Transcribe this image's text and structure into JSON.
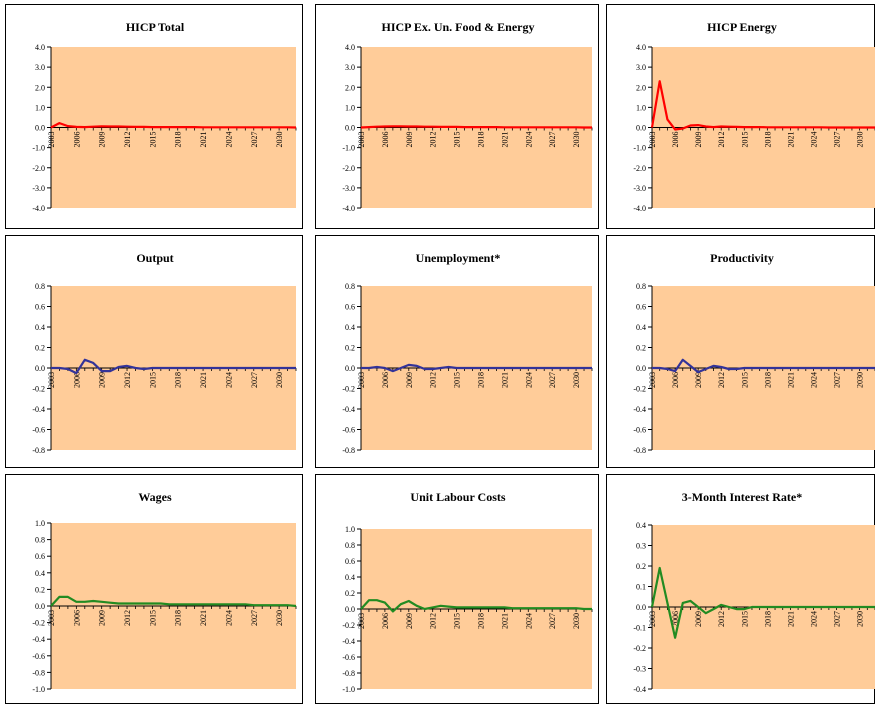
{
  "chart_data": [
    {
      "type": "line",
      "title": "HICP Total",
      "color": "#ff0000",
      "ylim": [
        -4,
        4
      ],
      "yticks": [
        4,
        3,
        2,
        1,
        0,
        -1,
        -2,
        -3,
        -4
      ],
      "xlim": [
        2003,
        2032
      ],
      "xticks": [
        "2003",
        "2006",
        "2009",
        "2012",
        "2015",
        "2018",
        "2021",
        "2024",
        "2027",
        "2030"
      ],
      "series": [
        {
          "x": [
            2003,
            2004,
            2005,
            2006,
            2007,
            2008,
            2009,
            2010,
            2011,
            2012,
            2013,
            2014,
            2015,
            2016,
            2017,
            2018,
            2019,
            2020,
            2021,
            2022,
            2023,
            2024,
            2025,
            2026,
            2027,
            2028,
            2029,
            2030,
            2031,
            2032
          ],
          "values": [
            0.0,
            0.22,
            0.07,
            0.03,
            0.02,
            0.04,
            0.06,
            0.05,
            0.05,
            0.04,
            0.03,
            0.03,
            0.02,
            0.02,
            0.02,
            0.02,
            0.02,
            0.02,
            0.01,
            0.01,
            0.01,
            0.01,
            0.01,
            0.01,
            0.01,
            0.01,
            0.01,
            0.01,
            0.01,
            0.0
          ]
        }
      ]
    },
    {
      "type": "line",
      "title": "HICP Ex. Un. Food & Energy",
      "color": "#ff0000",
      "ylim": [
        -4,
        4
      ],
      "yticks": [
        4,
        3,
        2,
        1,
        0,
        -1,
        -2,
        -3,
        -4
      ],
      "xlim": [
        2003,
        2032
      ],
      "xticks": [
        "2003",
        "2006",
        "2009",
        "2012",
        "2015",
        "2018",
        "2021",
        "2024",
        "2027",
        "2030"
      ],
      "series": [
        {
          "x": [
            2003,
            2004,
            2005,
            2006,
            2007,
            2008,
            2009,
            2010,
            2011,
            2012,
            2013,
            2014,
            2015,
            2016,
            2017,
            2018,
            2019,
            2020,
            2021,
            2022,
            2023,
            2024,
            2025,
            2026,
            2027,
            2028,
            2029,
            2030,
            2031,
            2032
          ],
          "values": [
            0.0,
            0.02,
            0.04,
            0.05,
            0.06,
            0.06,
            0.05,
            0.05,
            0.04,
            0.04,
            0.03,
            0.03,
            0.03,
            0.02,
            0.02,
            0.02,
            0.02,
            0.02,
            0.01,
            0.01,
            0.01,
            0.01,
            0.01,
            0.01,
            0.01,
            0.01,
            0.01,
            0.01,
            0.0,
            0.0
          ]
        }
      ]
    },
    {
      "type": "line",
      "title": "HICP Energy",
      "color": "#ff0000",
      "ylim": [
        -4,
        4
      ],
      "yticks": [
        4,
        3,
        2,
        1,
        0,
        -1,
        -2,
        -3,
        -4
      ],
      "xlim": [
        2003,
        2032
      ],
      "xticks": [
        "2003",
        "2006",
        "2009",
        "2012",
        "2015",
        "2018",
        "2021",
        "2024",
        "2027",
        "2030"
      ],
      "series": [
        {
          "x": [
            2003,
            2004,
            2005,
            2006,
            2007,
            2008,
            2009,
            2010,
            2011,
            2012,
            2013,
            2014,
            2015,
            2016,
            2017,
            2018,
            2019,
            2020,
            2021,
            2022,
            2023,
            2024,
            2025,
            2026,
            2027,
            2028,
            2029,
            2030,
            2031,
            2032
          ],
          "values": [
            0.0,
            2.3,
            0.4,
            -0.1,
            -0.05,
            0.1,
            0.12,
            0.05,
            0.02,
            0.05,
            0.04,
            0.03,
            0.02,
            0.02,
            0.02,
            0.01,
            0.01,
            0.01,
            0.01,
            0.01,
            0.01,
            0.01,
            0.01,
            0.0,
            0.0,
            0.0,
            0.0,
            0.0,
            0.0,
            0.0
          ]
        }
      ]
    },
    {
      "type": "line",
      "title": "Output",
      "color": "#333399",
      "ylim": [
        -0.8,
        0.8
      ],
      "yticks": [
        "0.8",
        "0.6",
        "0.4",
        "0.2",
        "0.0",
        "-0.2",
        "-0.4",
        "-0.6",
        "-0.8"
      ],
      "xlim": [
        2003,
        2032
      ],
      "xticks": [
        "2003",
        "2006",
        "2009",
        "2012",
        "2015",
        "2018",
        "2021",
        "2024",
        "2027",
        "2030"
      ],
      "series": [
        {
          "x": [
            2003,
            2004,
            2005,
            2006,
            2007,
            2008,
            2009,
            2010,
            2011,
            2012,
            2013,
            2014,
            2015,
            2016,
            2017,
            2018,
            2019,
            2020,
            2021,
            2022,
            2023,
            2024,
            2025,
            2026,
            2027,
            2028,
            2029,
            2030,
            2031,
            2032
          ],
          "values": [
            0.0,
            0.0,
            -0.01,
            -0.05,
            0.08,
            0.05,
            -0.03,
            -0.03,
            0.01,
            0.02,
            0.0,
            -0.01,
            0.0,
            0.0,
            0.0,
            0.0,
            0.0,
            0.0,
            0.0,
            0.0,
            0.0,
            0.0,
            0.0,
            0.0,
            0.0,
            0.0,
            0.0,
            0.0,
            0.0,
            0.0
          ]
        }
      ]
    },
    {
      "type": "line",
      "title": "Unemployment*",
      "color": "#333399",
      "ylim": [
        -0.8,
        0.8
      ],
      "yticks": [
        "0.8",
        "0.6",
        "0.4",
        "0.2",
        "0.0",
        "-0.2",
        "-0.4",
        "-0.6",
        "-0.8"
      ],
      "xlim": [
        2003,
        2032
      ],
      "xticks": [
        "2003",
        "2006",
        "2009",
        "2012",
        "2015",
        "2018",
        "2021",
        "2024",
        "2027",
        "2030"
      ],
      "series": [
        {
          "x": [
            2003,
            2004,
            2005,
            2006,
            2007,
            2008,
            2009,
            2010,
            2011,
            2012,
            2013,
            2014,
            2015,
            2016,
            2017,
            2018,
            2019,
            2020,
            2021,
            2022,
            2023,
            2024,
            2025,
            2026,
            2027,
            2028,
            2029,
            2030,
            2031,
            2032
          ],
          "values": [
            0.0,
            0.0,
            0.01,
            0.0,
            -0.03,
            0.0,
            0.03,
            0.02,
            -0.01,
            -0.01,
            0.0,
            0.01,
            0.0,
            0.0,
            0.0,
            0.0,
            0.0,
            0.0,
            0.0,
            0.0,
            0.0,
            0.0,
            0.0,
            0.0,
            0.0,
            0.0,
            0.0,
            0.0,
            0.0,
            0.0
          ]
        }
      ]
    },
    {
      "type": "line",
      "title": "Productivity",
      "color": "#333399",
      "ylim": [
        -0.8,
        0.8
      ],
      "yticks": [
        "0.8",
        "0.6",
        "0.4",
        "0.2",
        "0.0",
        "-0.2",
        "-0.4",
        "-0.6",
        "-0.8"
      ],
      "xlim": [
        2003,
        2032
      ],
      "xticks": [
        "2003",
        "2006",
        "2009",
        "2012",
        "2015",
        "2018",
        "2021",
        "2024",
        "2027",
        "2030"
      ],
      "series": [
        {
          "x": [
            2003,
            2004,
            2005,
            2006,
            2007,
            2008,
            2009,
            2010,
            2011,
            2012,
            2013,
            2014,
            2015,
            2016,
            2017,
            2018,
            2019,
            2020,
            2021,
            2022,
            2023,
            2024,
            2025,
            2026,
            2027,
            2028,
            2029,
            2030,
            2031,
            2032
          ],
          "values": [
            0.0,
            0.0,
            -0.01,
            -0.03,
            0.08,
            0.02,
            -0.04,
            -0.01,
            0.02,
            0.01,
            -0.01,
            -0.01,
            0.0,
            0.0,
            0.0,
            0.0,
            0.0,
            0.0,
            0.0,
            0.0,
            0.0,
            0.0,
            0.0,
            0.0,
            0.0,
            0.0,
            0.0,
            0.0,
            0.0,
            0.0
          ]
        }
      ]
    },
    {
      "type": "line",
      "title": "Wages",
      "color": "#228b22",
      "ylim": [
        -1,
        1
      ],
      "yticks": [
        "1.0",
        "0.8",
        "0.6",
        "0.4",
        "0.2",
        "0.0",
        "-0.2",
        "-0.4",
        "-0.6",
        "-0.8",
        "-1.0"
      ],
      "xlim": [
        2003,
        2032
      ],
      "xticks": [
        "2003",
        "2006",
        "2009",
        "2012",
        "2015",
        "2018",
        "2021",
        "2024",
        "2027",
        "2030"
      ],
      "series": [
        {
          "x": [
            2003,
            2004,
            2005,
            2006,
            2007,
            2008,
            2009,
            2010,
            2011,
            2012,
            2013,
            2014,
            2015,
            2016,
            2017,
            2018,
            2019,
            2020,
            2021,
            2022,
            2023,
            2024,
            2025,
            2026,
            2027,
            2028,
            2029,
            2030,
            2031,
            2032
          ],
          "values": [
            0.0,
            0.11,
            0.11,
            0.05,
            0.05,
            0.06,
            0.05,
            0.04,
            0.03,
            0.03,
            0.03,
            0.03,
            0.03,
            0.03,
            0.02,
            0.02,
            0.02,
            0.02,
            0.02,
            0.02,
            0.02,
            0.02,
            0.02,
            0.02,
            0.01,
            0.01,
            0.01,
            0.01,
            0.01,
            0.0
          ]
        }
      ]
    },
    {
      "type": "line",
      "title": "Unit Labour Costs",
      "color": "#228b22",
      "ylim": [
        -1,
        1
      ],
      "yticks": [
        "1.0",
        "0.8",
        "0.6",
        "0.4",
        "0.2",
        "0.0",
        "-0.2",
        "-0.4",
        "-0.6",
        "-0.8",
        "-1.0"
      ],
      "xlim": [
        2003,
        2032
      ],
      "xticks": [
        "2003",
        "2006",
        "2009",
        "2012",
        "2015",
        "2018",
        "2021",
        "2024",
        "2027",
        "2030"
      ],
      "series": [
        {
          "x": [
            2003,
            2004,
            2005,
            2006,
            2007,
            2008,
            2009,
            2010,
            2011,
            2012,
            2013,
            2014,
            2015,
            2016,
            2017,
            2018,
            2019,
            2020,
            2021,
            2022,
            2023,
            2024,
            2025,
            2026,
            2027,
            2028,
            2029,
            2030,
            2031,
            2032
          ],
          "values": [
            0.0,
            0.11,
            0.11,
            0.08,
            -0.03,
            0.06,
            0.1,
            0.04,
            0.0,
            0.02,
            0.04,
            0.03,
            0.02,
            0.02,
            0.02,
            0.02,
            0.02,
            0.02,
            0.02,
            0.01,
            0.01,
            0.01,
            0.01,
            0.01,
            0.01,
            0.01,
            0.01,
            0.01,
            0.0,
            0.0
          ]
        }
      ]
    },
    {
      "type": "line",
      "title": "3-Month Interest Rate*",
      "color": "#228b22",
      "ylim": [
        -0.4,
        0.4
      ],
      "yticks": [
        "0.4",
        "0.3",
        "0.2",
        "0.1",
        "0.0",
        "-0.1",
        "-0.2",
        "-0.3",
        "-0.4"
      ],
      "xlim": [
        2003,
        2032
      ],
      "xticks": [
        "2003",
        "2006",
        "2009",
        "2012",
        "2015",
        "2018",
        "2021",
        "2024",
        "2027",
        "2030"
      ],
      "series": [
        {
          "x": [
            2003,
            2004,
            2005,
            2006,
            2007,
            2008,
            2009,
            2010,
            2011,
            2012,
            2013,
            2014,
            2015,
            2016,
            2017,
            2018,
            2019,
            2020,
            2021,
            2022,
            2023,
            2024,
            2025,
            2026,
            2027,
            2028,
            2029,
            2030,
            2031,
            2032
          ],
          "values": [
            0.0,
            0.19,
            0.02,
            -0.15,
            0.02,
            0.03,
            0.0,
            -0.03,
            -0.01,
            0.01,
            0.0,
            -0.01,
            -0.01,
            0.0,
            0.0,
            0.0,
            0.0,
            0.0,
            0.0,
            0.0,
            0.0,
            0.0,
            0.0,
            0.0,
            0.0,
            0.0,
            0.0,
            0.0,
            0.0,
            0.0
          ]
        }
      ]
    }
  ],
  "style": {
    "plot_bg": "#ffcc99",
    "axis_color": "#000000"
  }
}
